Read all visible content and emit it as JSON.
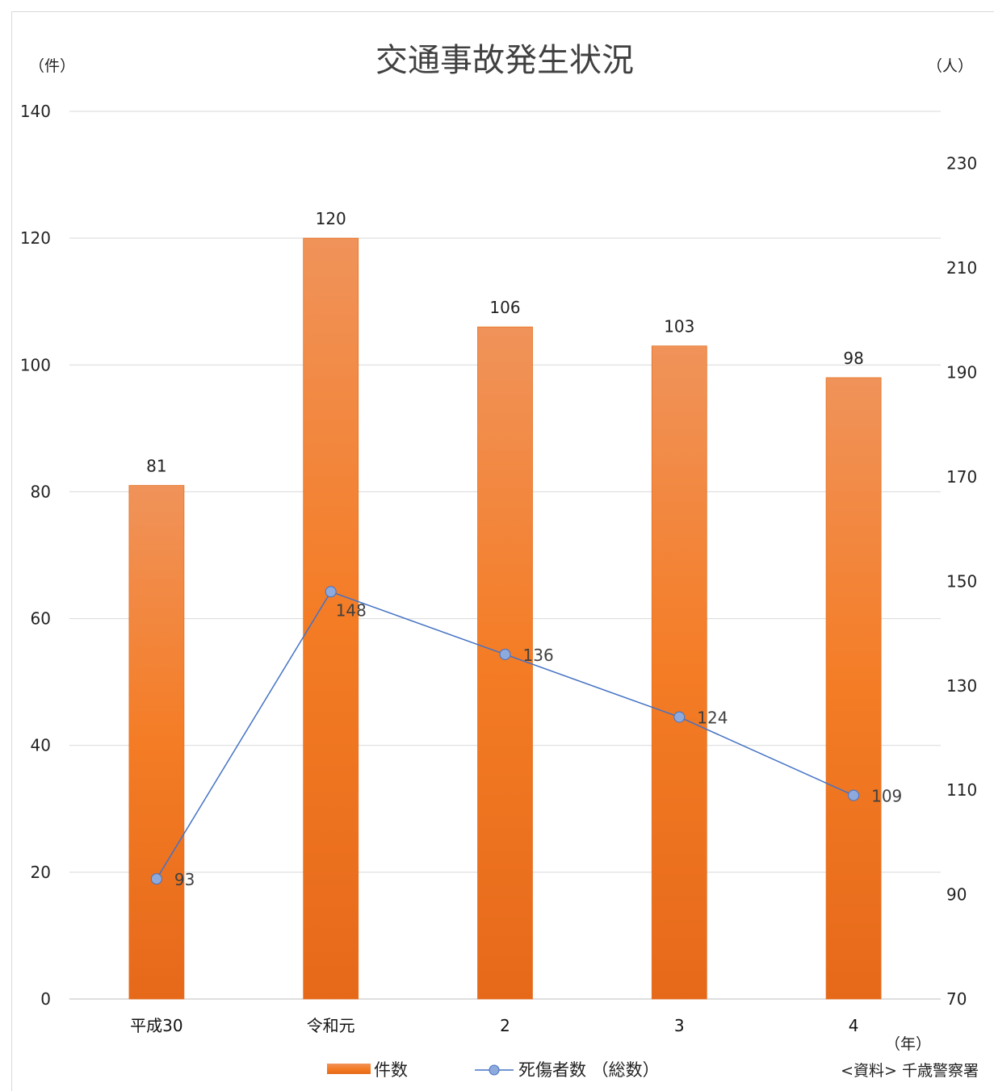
{
  "chart_data": {
    "type": "bar",
    "title": "交通事故発生状況",
    "y_left_unit": "（件）",
    "y_right_unit": "（人）",
    "x_unit": "（年）",
    "source": "<資料> 千歳警察署",
    "categories": [
      "平成30",
      "令和元",
      "2",
      "3",
      "4"
    ],
    "y_left": {
      "ylim": [
        0,
        140
      ],
      "ticks": [
        0,
        20,
        40,
        60,
        80,
        100,
        120,
        140
      ]
    },
    "y_right": {
      "ylim": [
        70,
        240
      ],
      "ticks": [
        70,
        90,
        110,
        130,
        150,
        170,
        190,
        210,
        230
      ]
    },
    "grid": true,
    "legend_position": "bottom",
    "series": [
      {
        "name": "件数",
        "type": "bar",
        "axis": "left",
        "color": "#ED7D31",
        "values": [
          81,
          120,
          106,
          103,
          98
        ]
      },
      {
        "name": "死傷者数 （総数）",
        "type": "line",
        "axis": "right",
        "color": "#4472C4",
        "marker_fill": "#8EA9DB",
        "values": [
          93,
          148,
          136,
          124,
          109
        ]
      }
    ]
  }
}
